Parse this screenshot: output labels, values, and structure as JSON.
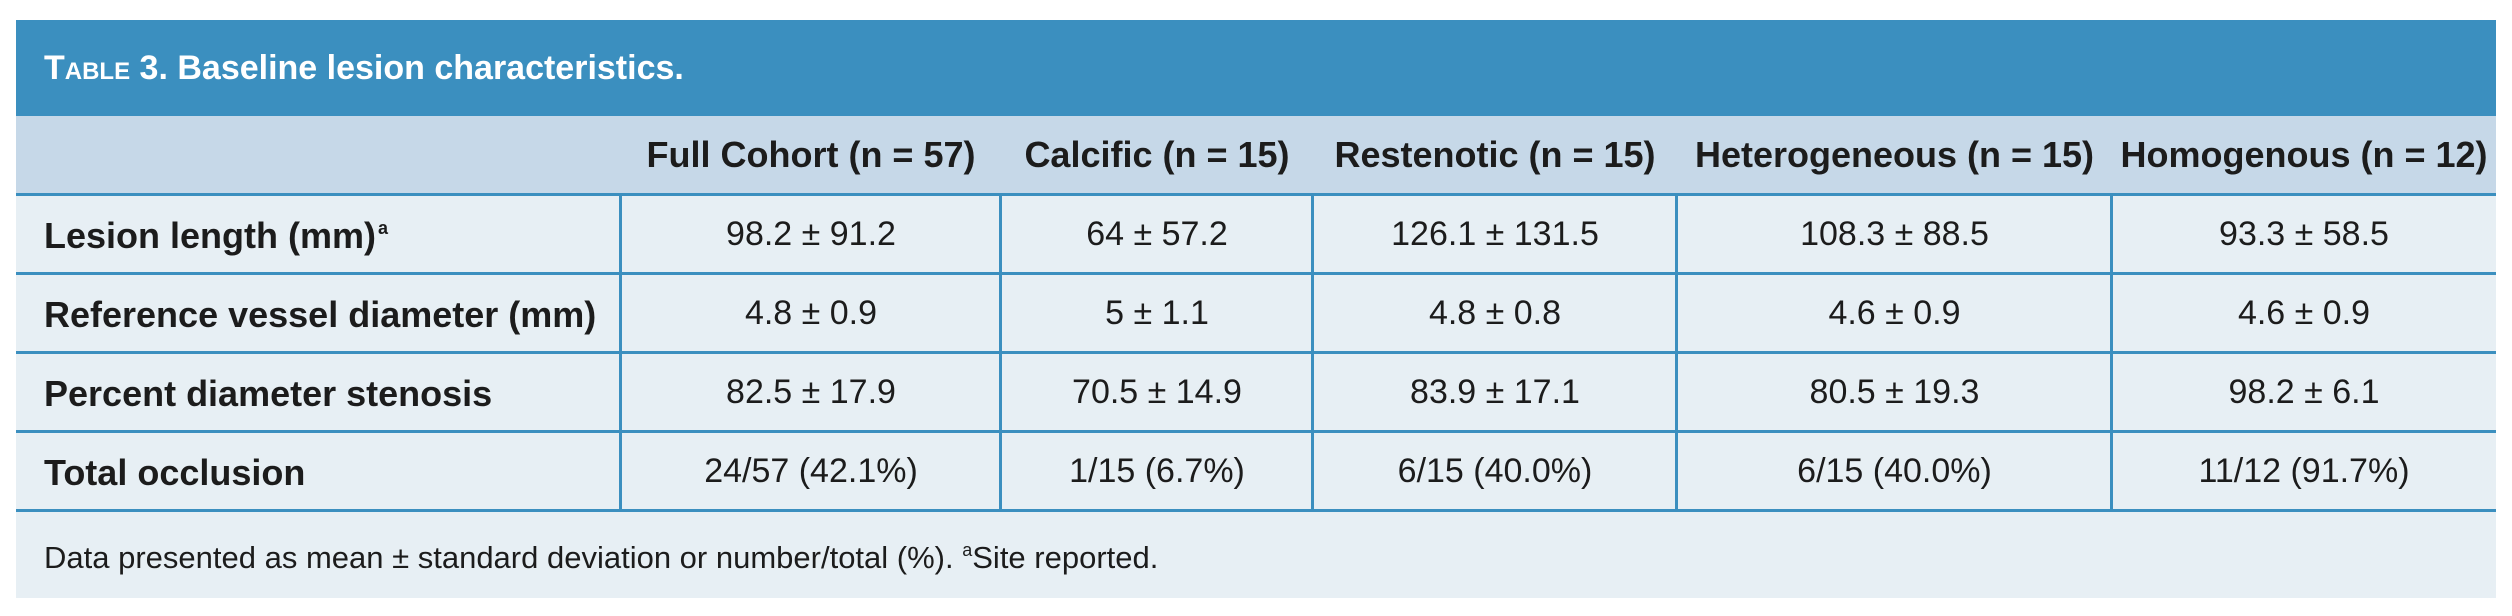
{
  "table": {
    "title_label": "Table 3.",
    "title_text": "Baseline lesion characteristics.",
    "columns": [
      "Full Cohort (n = 57)",
      "Calcific (n = 15)",
      "Restenotic (n = 15)",
      "Heterogeneous (n = 15)",
      "Homogenous (n = 12)"
    ],
    "rows": [
      {
        "label": "Lesion length (mm)",
        "label_sup": "a",
        "values": [
          "98.2 ± 91.2",
          "64 ± 57.2",
          "126.1 ± 131.5",
          "108.3 ± 88.5",
          "93.3 ± 58.5"
        ]
      },
      {
        "label": "Reference vessel diameter (mm)",
        "label_sup": "",
        "values": [
          "4.8 ± 0.9",
          "5 ± 1.1",
          "4.8 ± 0.8",
          "4.6 ± 0.9",
          "4.6 ± 0.9"
        ]
      },
      {
        "label": "Percent diameter stenosis",
        "label_sup": "",
        "values": [
          "82.5 ± 17.9",
          "70.5 ± 14.9",
          "83.9 ± 17.1",
          "80.5 ± 19.3",
          "98.2 ± 6.1"
        ]
      },
      {
        "label": "Total occlusion",
        "label_sup": "",
        "values": [
          "24/57 (42.1%)",
          "1/15 (6.7%)",
          "6/15 (40.0%)",
          "6/15 (40.0%)",
          "11/12 (91.7%)"
        ]
      }
    ],
    "footnote_main": "Data presented as mean ± standard deviation or number/total (%). ",
    "footnote_sup": "a",
    "footnote_tail": "Site reported.",
    "colors": {
      "title_bar": "#3b8fbf",
      "header_row": "#c6d8e8",
      "body_bg": "#e7eff4",
      "rule": "#3b8fbf"
    }
  }
}
